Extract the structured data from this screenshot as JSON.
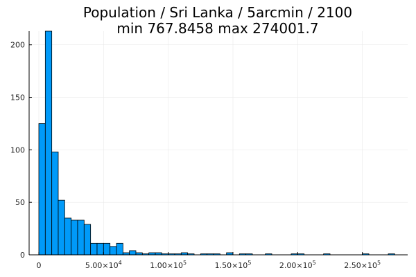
{
  "chart_data": {
    "type": "bar",
    "title": "Population / Sri Lanka / 5arcmin / 2100",
    "subtitle": "min 767.8458  max 274001.7",
    "xlabel": "",
    "ylabel": "",
    "grid": true,
    "legend": "none",
    "bar_color": "#009af9",
    "bin_width": 5000,
    "xlim": [
      -7500,
      285000
    ],
    "ylim": [
      0,
      213
    ],
    "bins_start": [
      0,
      5000,
      10000,
      15000,
      20000,
      25000,
      30000,
      35000,
      40000,
      45000,
      50000,
      55000,
      60000,
      65000,
      70000,
      75000,
      80000,
      85000,
      90000,
      95000,
      100000,
      105000,
      110000,
      115000,
      125000,
      130000,
      135000,
      145000,
      155000,
      160000,
      175000,
      195000,
      200000,
      220000,
      250000,
      270000
    ],
    "values": [
      125,
      213,
      98,
      52,
      35,
      33,
      33,
      29,
      11,
      11,
      11,
      8,
      11,
      2,
      4,
      2,
      1,
      2,
      2,
      1,
      1,
      1,
      2,
      1,
      1,
      1,
      1,
      2,
      1,
      1,
      1,
      1,
      1,
      1,
      1,
      1
    ],
    "x_ticks": [
      {
        "value": 0,
        "label": "0"
      },
      {
        "value": 50000,
        "label": "5.00×10",
        "sup": "4"
      },
      {
        "value": 100000,
        "label": "1.00×10",
        "sup": "5"
      },
      {
        "value": 150000,
        "label": "1.50×10",
        "sup": "5"
      },
      {
        "value": 200000,
        "label": "2.00×10",
        "sup": "5"
      },
      {
        "value": 250000,
        "label": "2.50×10",
        "sup": "5"
      }
    ],
    "y_ticks": [
      {
        "value": 0,
        "label": "0"
      },
      {
        "value": 50,
        "label": "50"
      },
      {
        "value": 100,
        "label": "100"
      },
      {
        "value": 150,
        "label": "150"
      },
      {
        "value": 200,
        "label": "200"
      }
    ]
  }
}
